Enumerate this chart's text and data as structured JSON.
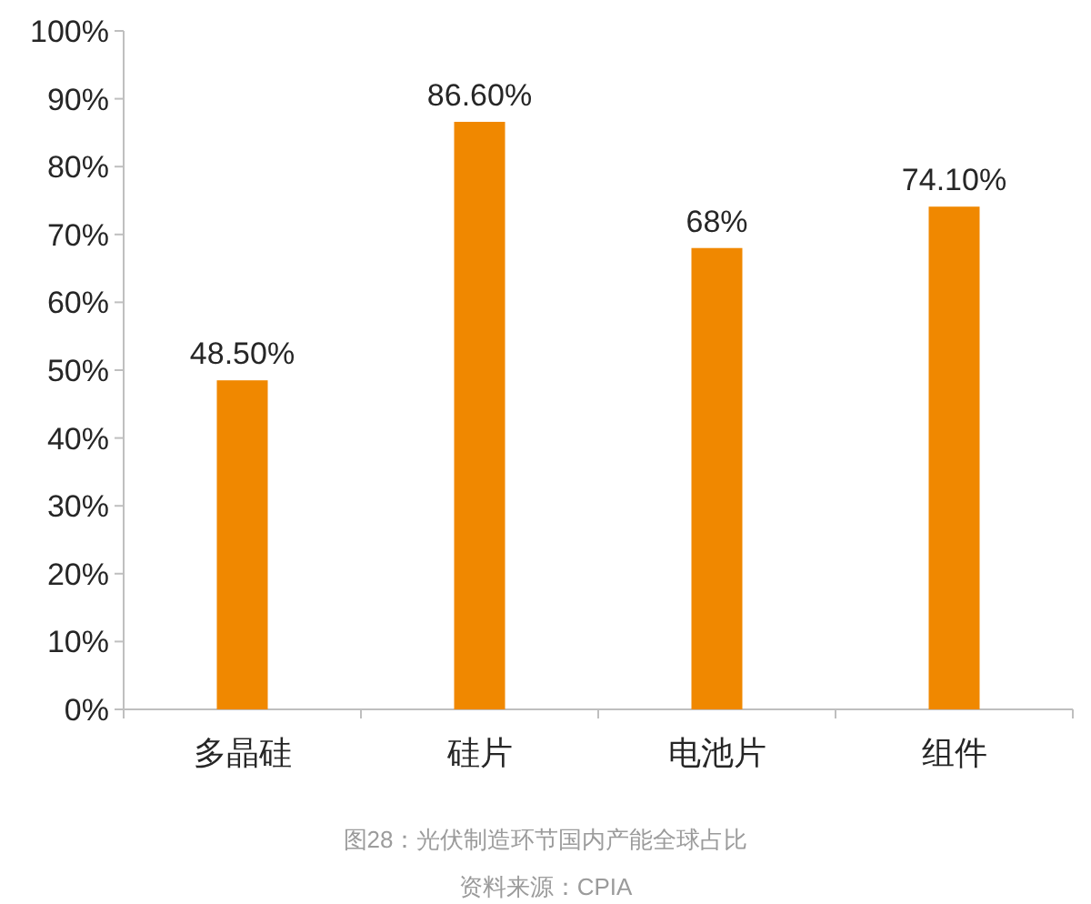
{
  "chart_data": {
    "type": "bar",
    "categories": [
      "多晶硅",
      "硅片",
      "电池片",
      "组件"
    ],
    "values": [
      48.5,
      86.6,
      68,
      74.1
    ],
    "color": "#f08800",
    "value_labels": [
      "48.50%",
      "86.60%",
      "68%",
      "74.10%"
    ],
    "ylim": [
      0,
      100
    ],
    "yticks": [
      {
        "value": 0,
        "label": "0%"
      },
      {
        "value": 10,
        "label": "10%"
      },
      {
        "value": 20,
        "label": "20%"
      },
      {
        "value": 30,
        "label": "30%"
      },
      {
        "value": 40,
        "label": "40%"
      },
      {
        "value": 50,
        "label": "50%"
      },
      {
        "value": 60,
        "label": "60%"
      },
      {
        "value": 70,
        "label": "70%"
      },
      {
        "value": 80,
        "label": "80%"
      },
      {
        "value": 90,
        "label": "90%"
      },
      {
        "value": 100,
        "label": "100%"
      }
    ],
    "annotations": [
      "图28：光伏制造环节国内产能全球占比",
      "资料来源：CPIA"
    ]
  }
}
